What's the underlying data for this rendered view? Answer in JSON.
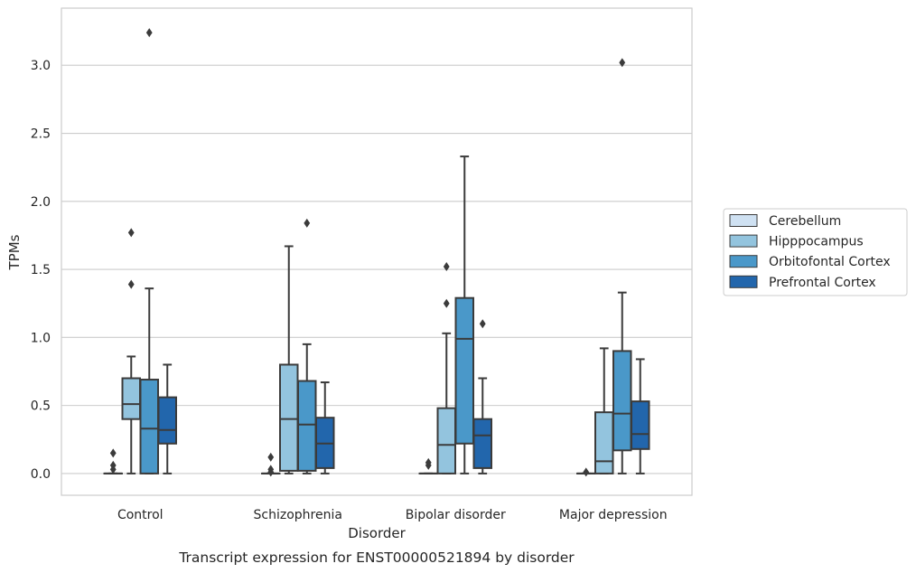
{
  "chart_data": {
    "type": "box",
    "xlabel": "Disorder",
    "ylabel": "TPMs",
    "caption": "Transcript expression for ENST00000521894 by disorder",
    "ylim": [
      -0.16,
      3.42
    ],
    "yticks": [
      "0.0",
      "0.5",
      "1.0",
      "1.5",
      "2.0",
      "2.5",
      "3.0"
    ],
    "grid": true,
    "legend_position": "right",
    "categories": [
      "Control",
      "Schizophrenia",
      "Bipolar disorder",
      "Major depression"
    ],
    "series": [
      {
        "name": "Cerebellum",
        "color": "#cfe1f2",
        "boxes": [
          {
            "whislo": 0,
            "q1": 0,
            "med": 0,
            "q3": 0,
            "whishi": 0,
            "fliers": [
              0.03,
              0.06,
              0.15
            ]
          },
          {
            "whislo": 0,
            "q1": 0,
            "med": 0,
            "q3": 0,
            "whishi": 0,
            "fliers": [
              0.01,
              0.03,
              0.12
            ]
          },
          {
            "whislo": 0,
            "q1": 0,
            "med": 0,
            "q3": 0,
            "whishi": 0,
            "fliers": [
              0.06,
              0.08
            ]
          },
          {
            "whislo": 0,
            "q1": 0,
            "med": 0,
            "q3": 0,
            "whishi": 0,
            "fliers": [
              0.01
            ]
          }
        ]
      },
      {
        "name": "Hipppocampus",
        "color": "#93c4de",
        "boxes": [
          {
            "whislo": 0,
            "q1": 0.4,
            "med": 0.51,
            "q3": 0.7,
            "whishi": 0.86,
            "fliers": [
              1.39,
              1.77
            ]
          },
          {
            "whislo": 0,
            "q1": 0.02,
            "med": 0.4,
            "q3": 0.8,
            "whishi": 1.67,
            "fliers": []
          },
          {
            "whislo": 0,
            "q1": 0,
            "med": 0.21,
            "q3": 0.48,
            "whishi": 1.03,
            "fliers": [
              1.25,
              1.52
            ]
          },
          {
            "whislo": 0,
            "q1": 0,
            "med": 0.09,
            "q3": 0.45,
            "whishi": 0.92,
            "fliers": []
          }
        ]
      },
      {
        "name": "Orbitofontal Cortex",
        "color": "#4a98c9",
        "boxes": [
          {
            "whislo": 0,
            "q1": 0,
            "med": 0.33,
            "q3": 0.69,
            "whishi": 1.36,
            "fliers": [
              3.24
            ]
          },
          {
            "whislo": 0,
            "q1": 0.02,
            "med": 0.36,
            "q3": 0.68,
            "whishi": 0.95,
            "fliers": [
              1.84
            ]
          },
          {
            "whislo": 0,
            "q1": 0.22,
            "med": 0.99,
            "q3": 1.29,
            "whishi": 2.33,
            "fliers": []
          },
          {
            "whislo": 0,
            "q1": 0.17,
            "med": 0.44,
            "q3": 0.9,
            "whishi": 1.33,
            "fliers": [
              3.02
            ]
          }
        ]
      },
      {
        "name": "Prefrontal Cortex",
        "color": "#2266ac",
        "boxes": [
          {
            "whislo": 0,
            "q1": 0.22,
            "med": 0.32,
            "q3": 0.56,
            "whishi": 0.8,
            "fliers": []
          },
          {
            "whislo": 0,
            "q1": 0.04,
            "med": 0.22,
            "q3": 0.41,
            "whishi": 0.67,
            "fliers": []
          },
          {
            "whislo": 0,
            "q1": 0.04,
            "med": 0.28,
            "q3": 0.4,
            "whishi": 0.7,
            "fliers": [
              1.1
            ]
          },
          {
            "whislo": 0,
            "q1": 0.18,
            "med": 0.29,
            "q3": 0.53,
            "whishi": 0.84,
            "fliers": []
          }
        ]
      }
    ]
  }
}
